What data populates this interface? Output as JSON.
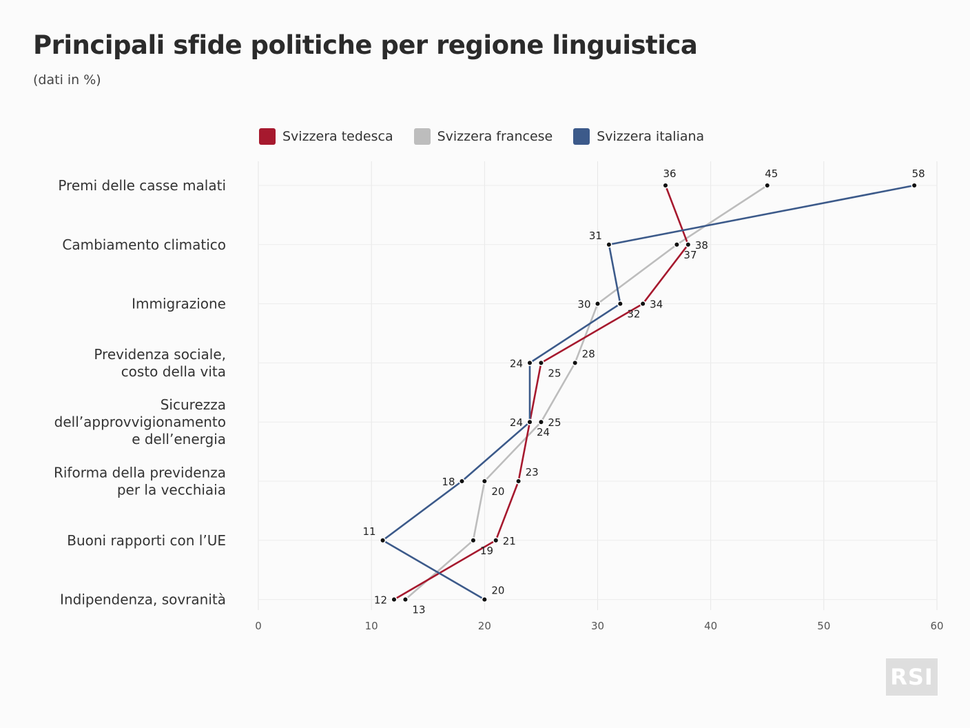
{
  "header": {
    "title": "Principali sfide politiche per regione linguistica",
    "subtitle": "(dati in %)"
  },
  "logo": {
    "text": "RSI"
  },
  "chart_data": {
    "type": "line",
    "title": "Principali sfide politiche per regione linguistica",
    "subtitle": "(dati in %)",
    "categories": [
      [
        "Premi delle casse malati"
      ],
      [
        "Cambiamento climatico"
      ],
      [
        "Immigrazione"
      ],
      [
        "Previdenza sociale,",
        "costo della vita"
      ],
      [
        "Sicurezza",
        "dell’approvvigionamento",
        "e dell’energia"
      ],
      [
        "Riforma della previdenza",
        "per la vecchiaia"
      ],
      [
        "Buoni rapporti con l’UE"
      ],
      [
        "Indipendenza, sovranità"
      ]
    ],
    "xlim": [
      0,
      60
    ],
    "xticks": [
      0,
      10,
      20,
      30,
      40,
      50,
      60
    ],
    "grid": true,
    "legend_position": "top",
    "series": [
      {
        "name": "Svizzera tedesca",
        "color": "#a6192e",
        "values": [
          36,
          38,
          34,
          25,
          24,
          23,
          21,
          12
        ]
      },
      {
        "name": "Svizzera francese",
        "color": "#bdbdbd",
        "values": [
          45,
          37,
          30,
          28,
          25,
          20,
          19,
          13
        ]
      },
      {
        "name": "Svizzera italiana",
        "color": "#3c5a8a",
        "values": [
          58,
          31,
          32,
          24,
          24,
          18,
          11,
          20
        ]
      }
    ]
  }
}
